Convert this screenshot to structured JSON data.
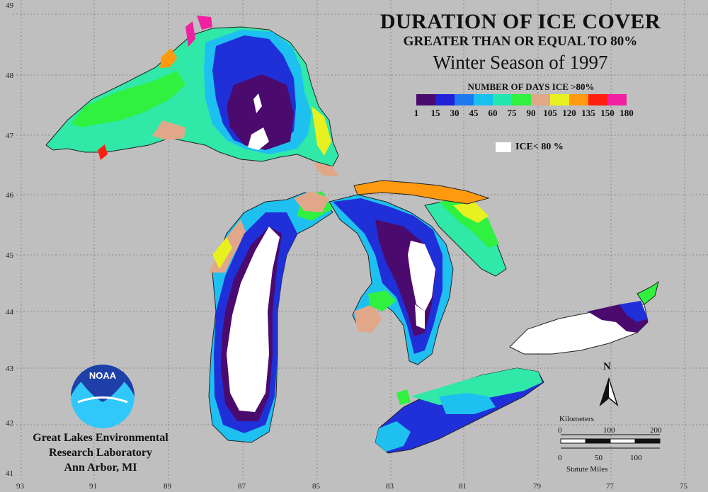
{
  "title": {
    "line1": "DURATION OF ICE COVER",
    "line2": "GREATER THAN OR EQUAL TO 80%",
    "line3": "Winter Season of 1997"
  },
  "legend": {
    "title": "NUMBER OF DAYS ICE >80%",
    "colors": [
      "#4a0a6e",
      "#2020d8",
      "#1e78f0",
      "#18c0f0",
      "#20e8b0",
      "#30f040",
      "#e0a888",
      "#e8f020",
      "#ff9a10",
      "#ff2010",
      "#f020a0"
    ],
    "labels": [
      "1",
      "15",
      "30",
      "45",
      "60",
      "75",
      "90",
      "105",
      "120",
      "135",
      "150",
      "180"
    ],
    "ice_label": "ICE< 80 %"
  },
  "axes": {
    "lat_labels": [
      "49",
      "48",
      "47",
      "46",
      "45",
      "44",
      "43",
      "42",
      "41"
    ],
    "lon_labels": [
      "93",
      "91",
      "89",
      "87",
      "85",
      "83",
      "81",
      "79",
      "77",
      "75"
    ]
  },
  "credit": {
    "line1": "Great Lakes Environmental",
    "line2": "Research Laboratory",
    "line3": "Ann Arbor, MI",
    "logo_text": "NOAA"
  },
  "scale": {
    "km_title": "Kilometers",
    "km_ticks": [
      "0",
      "100",
      "200"
    ],
    "mi_ticks": [
      "0",
      "50",
      "100"
    ],
    "mi_title": "Statute Miles",
    "north": "N"
  }
}
